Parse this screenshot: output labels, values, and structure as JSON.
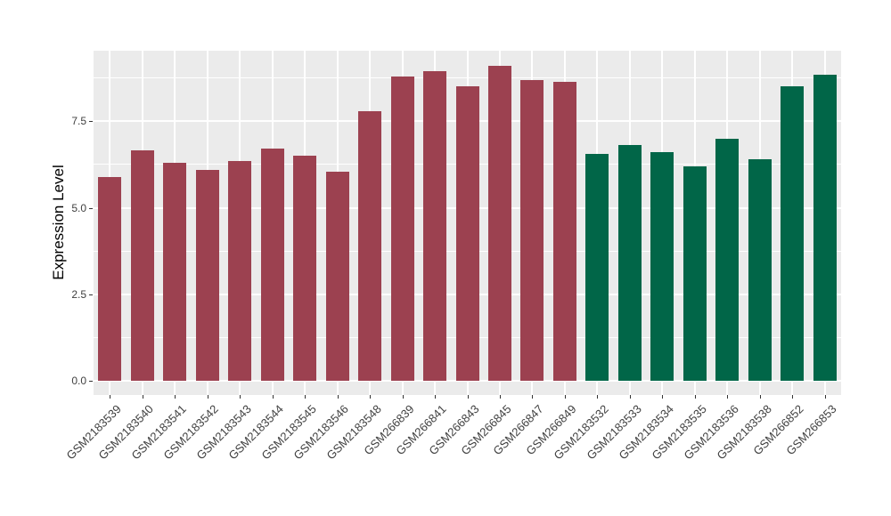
{
  "chart_data": {
    "type": "bar",
    "title": "",
    "ylabel": "Expression Level",
    "xlabel": "",
    "ylim": [
      0,
      9.55
    ],
    "yticks": [
      {
        "value": 0.0,
        "label": "0.0"
      },
      {
        "value": 2.5,
        "label": "2.5"
      },
      {
        "value": 5.0,
        "label": "5.0"
      },
      {
        "value": 7.5,
        "label": "7.5"
      }
    ],
    "yticks_minor": [
      1.25,
      3.75,
      6.25,
      8.75
    ],
    "grid": "major and minor horizontal gridlines plus vertical gridline per category, white on gray panel",
    "legend_position": "none",
    "bars": [
      {
        "label": "GSM2183539",
        "value": 5.9,
        "group": "group1"
      },
      {
        "label": "GSM2183540",
        "value": 6.65,
        "group": "group1"
      },
      {
        "label": "GSM2183541",
        "value": 6.3,
        "group": "group1"
      },
      {
        "label": "GSM2183542",
        "value": 6.1,
        "group": "group1"
      },
      {
        "label": "GSM2183543",
        "value": 6.35,
        "group": "group1"
      },
      {
        "label": "GSM2183544",
        "value": 6.7,
        "group": "group1"
      },
      {
        "label": "GSM2183545",
        "value": 6.5,
        "group": "group1"
      },
      {
        "label": "GSM2183546",
        "value": 6.05,
        "group": "group1"
      },
      {
        "label": "GSM2183548",
        "value": 7.8,
        "group": "group1"
      },
      {
        "label": "GSM266839",
        "value": 8.8,
        "group": "group1"
      },
      {
        "label": "GSM266841",
        "value": 8.95,
        "group": "group1"
      },
      {
        "label": "GSM266843",
        "value": 8.5,
        "group": "group1"
      },
      {
        "label": "GSM266845",
        "value": 9.1,
        "group": "group1"
      },
      {
        "label": "GSM266847",
        "value": 8.7,
        "group": "group1"
      },
      {
        "label": "GSM266849",
        "value": 8.65,
        "group": "group1"
      },
      {
        "label": "GSM2183532",
        "value": 6.55,
        "group": "group2"
      },
      {
        "label": "GSM2183533",
        "value": 6.8,
        "group": "group2"
      },
      {
        "label": "GSM2183534",
        "value": 6.6,
        "group": "group2"
      },
      {
        "label": "GSM2183535",
        "value": 6.2,
        "group": "group2"
      },
      {
        "label": "GSM2183536",
        "value": 7.0,
        "group": "group2"
      },
      {
        "label": "GSM2183538",
        "value": 6.4,
        "group": "group2"
      },
      {
        "label": "GSM266852",
        "value": 8.5,
        "group": "group2"
      },
      {
        "label": "GSM266853",
        "value": 8.85,
        "group": "group2"
      }
    ],
    "colors": {
      "group1": "#9C4150",
      "group2": "#016648"
    },
    "panel_background": "#EBEBEB",
    "grid_color": "#FFFFFF",
    "axis_text_color": "#404040",
    "axis_title_color": "#000000"
  }
}
